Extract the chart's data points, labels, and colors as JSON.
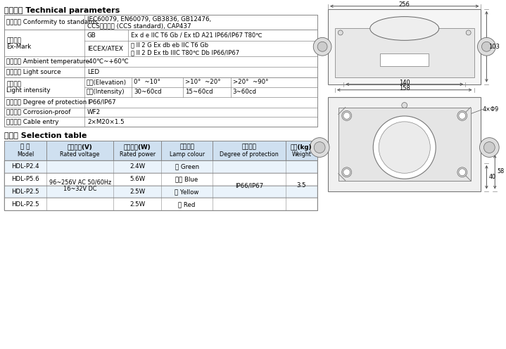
{
  "title_tech": "技术参数 Technical parameters",
  "title_sel": "选配表 Selection table",
  "bg_color": "#ffffff",
  "table_header_bg": "#cfe0f0",
  "border_color": "#888888",
  "tech_params": [
    {
      "label": "执行标准 Conformity to standards",
      "sub": null,
      "value": "IEC60079, EN60079, GB3836, GB12476,\nCCS入级规范 (CCS standard), CAP437",
      "type": "simple"
    },
    {
      "label": "防爆标志\nEx-Mark",
      "sub": "GB",
      "value": "Ex d e IIC T6 Gb / Ex tD A21 IP66/IP67 T80℃",
      "type": "sub"
    },
    {
      "label": "防爆标志\nEx-Mark",
      "sub": "IECEX/ATEX",
      "value": "ⓔ II 2 G Ex db eb IIC T6 Gb\nⓔ II 2 D Ex tb IIIC T80℃ Db IP66/IP67",
      "type": "sub"
    },
    {
      "label": "环境温度 Ambient temperature",
      "sub": null,
      "value": "-40℃~+60℃",
      "type": "simple"
    },
    {
      "label": "光源类型 Light source",
      "sub": null,
      "value": "LED",
      "type": "simple"
    },
    {
      "label": "发光强度\nLight intensity",
      "sub": "仰角(Elevation)",
      "value": [
        "0°  ~10°",
        ">10°  ~20°",
        ">20°  ~90°"
      ],
      "type": "multi"
    },
    {
      "label": "发光强度\nLight intensity",
      "sub": "光强(Intensity)",
      "value": [
        "30~60cd",
        "15~60cd",
        "3~60cd"
      ],
      "type": "multi"
    },
    {
      "label": "防护等级 Degree of protection",
      "sub": null,
      "value": "IP66/IP67",
      "type": "simple"
    },
    {
      "label": "防腐等级 Corrosion-proof",
      "sub": null,
      "value": "WF2",
      "type": "simple"
    },
    {
      "label": "进线规格 Cable entry",
      "sub": null,
      "value": "2×M20×1.5",
      "type": "simple"
    }
  ],
  "sel_headers_line1": [
    "型 号",
    "额定电压(V)",
    "额定功率(W)",
    "发光颜色",
    "防护等级",
    "重量(kg)"
  ],
  "sel_headers_line2": [
    "Model",
    "Rated voltage",
    "Rated power",
    "Lamp colour",
    "Degree of protection",
    "Weight"
  ],
  "sel_rows": [
    [
      "HDL-P2.4",
      "",
      "2.4W",
      "绿 Green",
      "",
      ""
    ],
    [
      "HDL-P5.6",
      "96~256V AC 50/60Hz\n16~32V DC",
      "5.6W",
      "蓝色 Blue",
      "IP66/IP67",
      "3.5"
    ],
    [
      "HDL-P2.5",
      "",
      "2.5W",
      "黄 Yellow",
      "",
      ""
    ],
    [
      "HDL-P2.5",
      "",
      "2.5W",
      "红 Red",
      "",
      ""
    ]
  ],
  "dim_top_w": "256",
  "dim_top_h": "103",
  "dim_bot_w1": "158",
  "dim_bot_w2": "140",
  "dim_bot_h1": "40",
  "dim_bot_h2": "58",
  "dim_hole": "4×Φ9"
}
